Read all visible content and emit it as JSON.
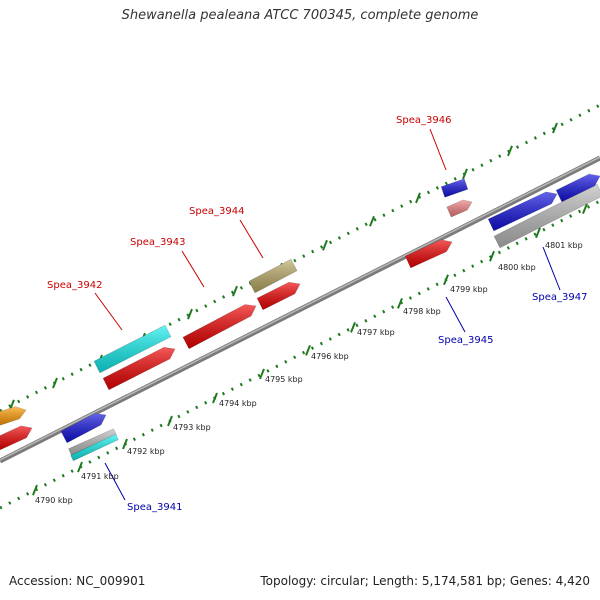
{
  "title": "Shewanella pealeana ATCC 700345, complete genome",
  "footer": {
    "accession": "Accession: NC_009901",
    "summary": "Topology: circular; Length: 5,174,581 bp; Genes: 4,420"
  },
  "colors": {
    "backbone": "#8c8c8c",
    "ticks": "#1f7a1f",
    "top_labels": "#cc0000",
    "bottom_labels": "#0000aa"
  },
  "kbp_labels": [
    "4790 kbp",
    "4791 kbp",
    "4792 kbp",
    "4793 kbp",
    "4794 kbp",
    "4795 kbp",
    "4796 kbp",
    "4797 kbp",
    "4798 kbp",
    "4799 kbp",
    "4800 kbp",
    "4801 kbp"
  ],
  "gene_labels": [
    {
      "text": "Spea_3942",
      "side": "top"
    },
    {
      "text": "Spea_3943",
      "side": "top"
    },
    {
      "text": "Spea_3944",
      "side": "top"
    },
    {
      "text": "Spea_3946",
      "side": "top"
    },
    {
      "text": "Spea_3941",
      "side": "bottom"
    },
    {
      "text": "Spea_3945",
      "side": "bottom"
    },
    {
      "text": "Spea_3947",
      "side": "bottom"
    }
  ],
  "features": [
    {
      "color": "#ff9900"
    },
    {
      "color": "#ee0000"
    },
    {
      "color": "#1111dd"
    },
    {
      "color": "#bbbbbb"
    },
    {
      "color": "#11eeee"
    },
    {
      "color": "#11eeee"
    },
    {
      "color": "#ee0000"
    },
    {
      "color": "#ee0000"
    },
    {
      "color": "#bbaa66"
    },
    {
      "color": "#ee0000"
    },
    {
      "color": "#1111dd"
    },
    {
      "color": "#f08080"
    },
    {
      "color": "#ee0000"
    },
    {
      "color": "#1111dd"
    },
    {
      "color": "#bbbbbb"
    },
    {
      "color": "#1111dd"
    }
  ]
}
